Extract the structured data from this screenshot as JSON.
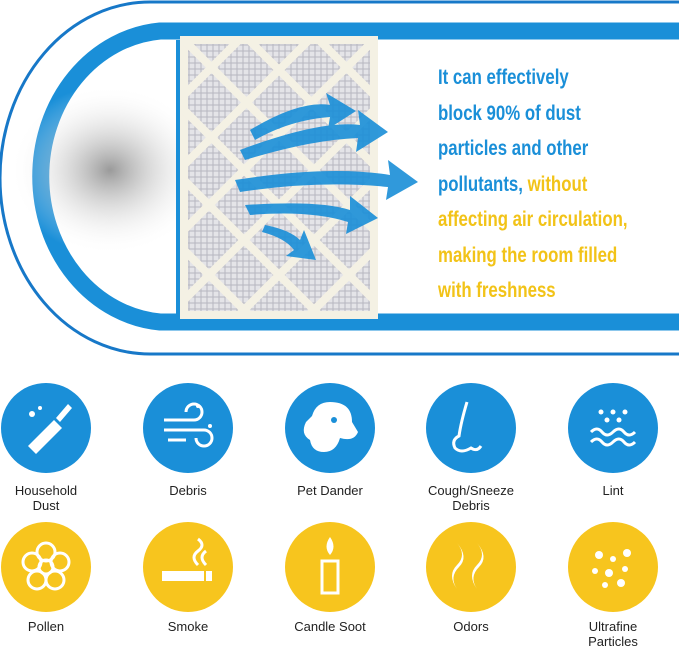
{
  "headline": {
    "lines": [
      [
        {
          "text": "It can effectively",
          "color": "#1a8fd8"
        }
      ],
      [
        {
          "text": "block 90% of dust",
          "color": "#1a8fd8"
        }
      ],
      [
        {
          "text": "particles and other",
          "color": "#1a8fd8"
        }
      ],
      [
        {
          "text": "pollutants,",
          "color": "#1a8fd8"
        },
        {
          "text": " without",
          "color": "#f2c318"
        }
      ],
      [
        {
          "text": "affecting air circulation,",
          "color": "#f2c318"
        }
      ],
      [
        {
          "text": "making the room filled",
          "color": "#f2c318"
        }
      ],
      [
        {
          "text": "with freshness",
          "color": "#f2c318"
        }
      ]
    ]
  },
  "icons": [
    {
      "label": [
        "Household",
        "Dust"
      ],
      "color": "#1a8fd8"
    },
    {
      "label": [
        "Debris"
      ],
      "color": "#1a8fd8"
    },
    {
      "label": [
        "Pet Dander"
      ],
      "color": "#1a8fd8"
    },
    {
      "label": [
        "Cough/Sneeze",
        "Debris"
      ],
      "color": "#1a8fd8"
    },
    {
      "label": [
        "Lint"
      ],
      "color": "#1a8fd8"
    },
    {
      "label": [
        "Pollen"
      ],
      "color": "#f7c51e"
    },
    {
      "label": [
        "Smoke"
      ],
      "color": "#f7c51e"
    },
    {
      "label": [
        "Candle Soot"
      ],
      "color": "#f7c51e"
    },
    {
      "label": [
        "Odors"
      ],
      "color": "#f7c51e"
    },
    {
      "label": [
        "Ultrafine",
        "Particles"
      ],
      "color": "#f7c51e"
    }
  ]
}
